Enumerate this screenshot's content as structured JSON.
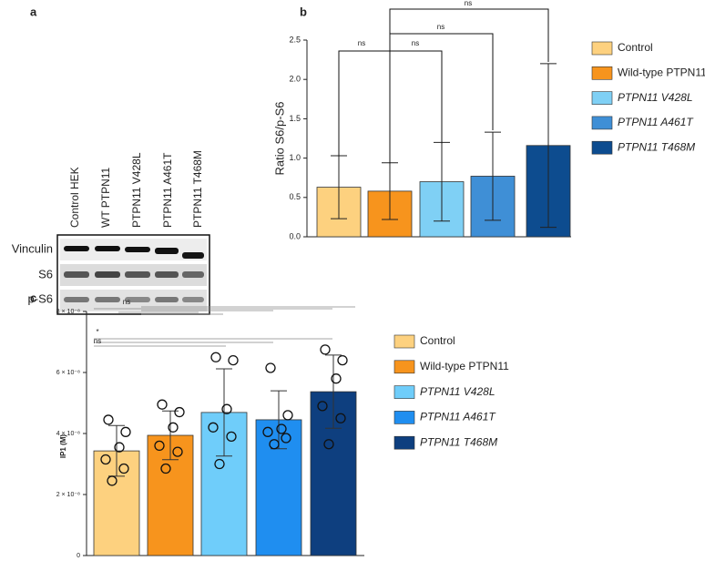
{
  "blot": {
    "panel_label": "a",
    "lanes": [
      "Control HEK",
      "WT PTPN11",
      "PTPN11 V428L",
      "PTPN11 A461T",
      "PTPN11 T468M"
    ],
    "rows": [
      "Vinculin",
      "S6",
      "p-S6"
    ]
  },
  "chart_data": [
    {
      "type": "bar",
      "panel_label": "b",
      "y_label": "Ratio S6/p-S6",
      "ylim": [
        0,
        2.5
      ],
      "yticks": [
        {
          "value": 0,
          "label": "0.0"
        },
        0.5,
        {
          "value": 1,
          "label": "1.0"
        },
        1.5,
        {
          "value": 2,
          "label": "2.0"
        },
        2.5
      ],
      "series": [
        {
          "name": "Control",
          "color": "#fdd17f",
          "values": [
            0.63
          ],
          "errors": [
            0.4
          ]
        },
        {
          "name": "Wild-type PTPN11",
          "color": "#f7941d",
          "values": [
            0.58
          ],
          "errors": [
            0.36
          ]
        },
        {
          "name": "PTPN11 V428L",
          "color": "#7fd0f5",
          "values": [
            0.7
          ],
          "errors": [
            0.5
          ]
        },
        {
          "name": "PTPN11 A461T",
          "color": "#3f8fd6",
          "values": [
            0.77
          ],
          "errors": [
            0.56
          ]
        },
        {
          "name": "PTPN11 T468M",
          "color": "#0d4c8f",
          "values": [
            1.16
          ],
          "errors": [
            1.04
          ]
        }
      ],
      "annotations": [
        "ns",
        "ns",
        "ns",
        "ns"
      ]
    },
    {
      "type": "bar",
      "panel_label": "c",
      "y_label": "IP1 (M)",
      "ylim": [
        0,
        8e-08
      ],
      "yticks": [
        0,
        {
          "value": 2e-08,
          "label": "2 × 10⁻⁸"
        },
        {
          "value": 4e-08,
          "label": "4 × 10⁻⁸"
        },
        {
          "value": 6e-08,
          "label": "6 × 10⁻⁸"
        },
        {
          "value": 8e-08,
          "label": "8 × 10⁻⁸"
        }
      ],
      "series": [
        {
          "name": "Control",
          "color": "#fdd17f",
          "values": [
            3.43e-08
          ],
          "errors": [
            8.3e-09
          ],
          "points": [
            4.45e-08,
            4.05e-08,
            3.55e-08,
            3.15e-08,
            2.85e-08,
            2.45e-08
          ]
        },
        {
          "name": "Wild-type PTPN11",
          "color": "#f7941d",
          "values": [
            3.94e-08
          ],
          "errors": [
            8e-09
          ],
          "points": [
            4.95e-08,
            4.7e-08,
            4.2e-08,
            3.6e-08,
            3.4e-08,
            2.85e-08
          ]
        },
        {
          "name": "PTPN11 V428L",
          "color": "#6fcdfa",
          "values": [
            4.69e-08
          ],
          "errors": [
            1.43e-08
          ],
          "points": [
            6.5e-08,
            6.4e-08,
            4.8e-08,
            4.2e-08,
            3.9e-08,
            3e-08
          ]
        },
        {
          "name": "PTPN11 A461T",
          "color": "#1f8ef0",
          "values": [
            4.45e-08
          ],
          "errors": [
            9.5e-09
          ],
          "points": [
            6.15e-08,
            4.6e-08,
            4.15e-08,
            4.05e-08,
            3.85e-08,
            3.65e-08
          ]
        },
        {
          "name": "PTPN11 T468M",
          "color": "#0e3f7f",
          "values": [
            5.37e-08
          ],
          "errors": [
            1.2e-08
          ],
          "points": [
            6.75e-08,
            6.4e-08,
            5.8e-08,
            4.9e-08,
            4.5e-08,
            3.65e-08
          ]
        }
      ],
      "annotations": [
        "ns",
        "*",
        "ns"
      ]
    }
  ]
}
